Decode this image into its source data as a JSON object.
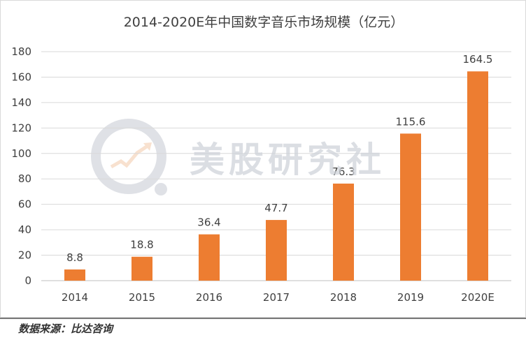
{
  "chart_data": {
    "type": "bar",
    "title": "2014-2020E年中国数字音乐市场规模（亿元）",
    "categories": [
      "2014",
      "2015",
      "2016",
      "2017",
      "2018",
      "2019",
      "2020E"
    ],
    "values": [
      8.8,
      18.8,
      36.4,
      47.7,
      76.3,
      115.6,
      164.5
    ],
    "data_labels": [
      "8.8",
      "18.8",
      "36.4",
      "47.7",
      "76.3",
      "115.6",
      "164.5"
    ],
    "ylim": [
      0,
      180
    ],
    "yticks": [
      0,
      20,
      40,
      60,
      80,
      100,
      120,
      140,
      160,
      180
    ],
    "xlabel": "",
    "ylabel": "",
    "grid": true,
    "legend": "none",
    "bar_color": "#ED7D31",
    "grid_color": "#D9D9D9"
  },
  "watermark": {
    "text": "美股研究社",
    "logo": "magnifier-chart-logo"
  },
  "source": {
    "text": "数据来源：比达咨询"
  }
}
